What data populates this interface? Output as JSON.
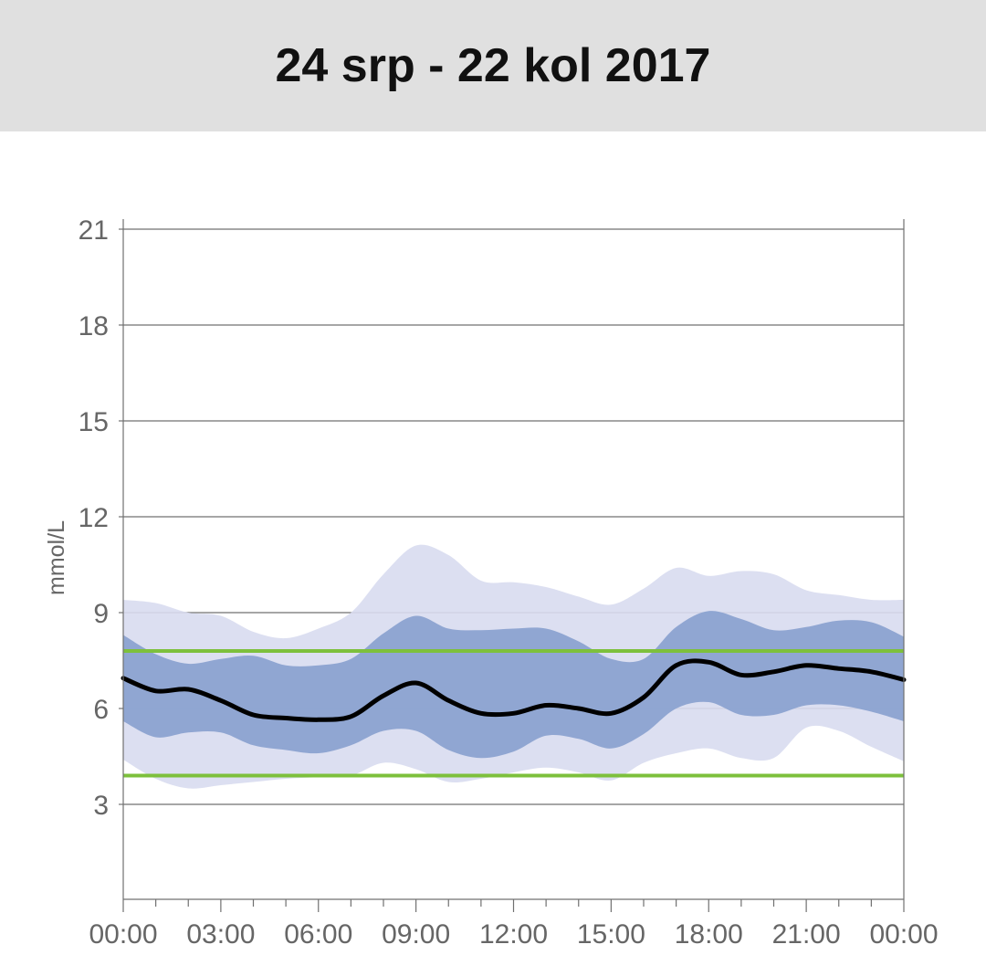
{
  "header": {
    "title": "24 srp - 22 kol 2017"
  },
  "colors": {
    "outer_band": "#d8dcef",
    "inner_band": "#8ba2d0",
    "median_line": "#000000",
    "target_line": "#7dc03c",
    "grid": "#707070",
    "header_bg": "#e0e0e0"
  },
  "chart_data": {
    "type": "area",
    "title": "24 srp - 22 kol 2017",
    "xlabel": "",
    "ylabel": "mmol/L",
    "x_tick_labels": [
      "00:00",
      "03:00",
      "06:00",
      "09:00",
      "12:00",
      "15:00",
      "18:00",
      "21:00",
      "00:00"
    ],
    "y_ticks": [
      3,
      6,
      9,
      12,
      15,
      18,
      21
    ],
    "ylim": [
      0,
      21.2
    ],
    "xlim_hours": [
      0,
      24
    ],
    "grid": true,
    "target_range": {
      "low": 3.9,
      "high": 7.8
    },
    "x_hours": [
      0,
      1,
      2,
      3,
      4,
      5,
      6,
      7,
      8,
      9,
      10,
      11,
      12,
      13,
      14,
      15,
      16,
      17,
      18,
      19,
      20,
      21,
      22,
      23,
      24
    ],
    "series": [
      {
        "role": "p10_p90_low",
        "values": [
          4.4,
          3.8,
          3.5,
          3.6,
          3.7,
          3.8,
          3.85,
          3.9,
          4.3,
          4.1,
          3.7,
          3.8,
          4.0,
          4.15,
          4.0,
          3.75,
          4.3,
          4.6,
          4.75,
          4.45,
          4.45,
          5.4,
          5.3,
          4.8,
          4.35
        ]
      },
      {
        "role": "p10_p90_high",
        "values": [
          9.4,
          9.3,
          9.0,
          8.9,
          8.4,
          8.2,
          8.5,
          9.0,
          10.2,
          11.1,
          10.8,
          10.0,
          9.95,
          9.8,
          9.5,
          9.25,
          9.75,
          10.4,
          10.15,
          10.3,
          10.2,
          9.7,
          9.55,
          9.4,
          9.4
        ]
      },
      {
        "role": "p25_p75_low",
        "values": [
          5.6,
          5.1,
          5.25,
          5.25,
          4.85,
          4.7,
          4.6,
          4.85,
          5.3,
          5.3,
          4.7,
          4.45,
          4.65,
          5.15,
          5.05,
          4.75,
          5.2,
          6.0,
          6.2,
          5.8,
          5.8,
          6.1,
          6.1,
          5.9,
          5.6
        ]
      },
      {
        "role": "p25_p75_high",
        "values": [
          8.3,
          7.7,
          7.4,
          7.55,
          7.65,
          7.35,
          7.35,
          7.55,
          8.35,
          8.9,
          8.5,
          8.45,
          8.5,
          8.5,
          8.1,
          7.55,
          7.55,
          8.55,
          9.05,
          8.8,
          8.45,
          8.55,
          8.75,
          8.7,
          8.25
        ]
      },
      {
        "role": "median",
        "values": [
          6.95,
          6.55,
          6.6,
          6.25,
          5.8,
          5.7,
          5.65,
          5.75,
          6.4,
          6.8,
          6.25,
          5.85,
          5.85,
          6.1,
          6.0,
          5.85,
          6.35,
          7.35,
          7.45,
          7.05,
          7.15,
          7.35,
          7.25,
          7.15,
          6.9
        ]
      }
    ]
  }
}
